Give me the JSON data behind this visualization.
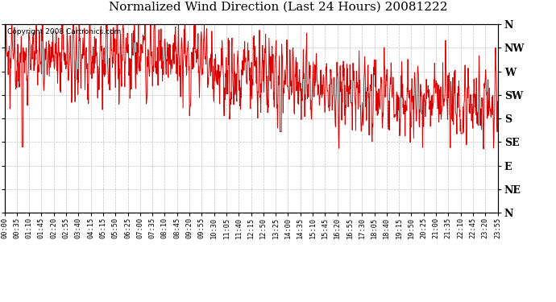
{
  "title": "Normalized Wind Direction (Last 24 Hours) 20081222",
  "copyright": "Copyright 2008 Cartronics.com",
  "line_color": "#dd0000",
  "bg_color": "#ffffff",
  "grid_color": "#bbbbbb",
  "ytick_labels": [
    "N",
    "NW",
    "W",
    "SW",
    "S",
    "SE",
    "E",
    "NE",
    "N"
  ],
  "ytick_values": [
    1.0,
    0.875,
    0.75,
    0.625,
    0.5,
    0.375,
    0.25,
    0.125,
    0.0
  ],
  "xtick_labels": [
    "00:00",
    "00:35",
    "01:10",
    "01:45",
    "02:20",
    "02:55",
    "03:40",
    "04:15",
    "05:15",
    "05:50",
    "06:25",
    "07:00",
    "07:35",
    "08:10",
    "08:45",
    "09:20",
    "09:55",
    "10:30",
    "11:05",
    "11:40",
    "12:15",
    "12:50",
    "13:25",
    "14:00",
    "14:35",
    "15:10",
    "15:45",
    "16:20",
    "16:55",
    "17:30",
    "18:05",
    "18:40",
    "19:15",
    "19:50",
    "20:25",
    "21:00",
    "21:35",
    "22:10",
    "22:45",
    "23:20",
    "23:55"
  ],
  "figwidth": 6.9,
  "figheight": 3.75,
  "dpi": 100
}
